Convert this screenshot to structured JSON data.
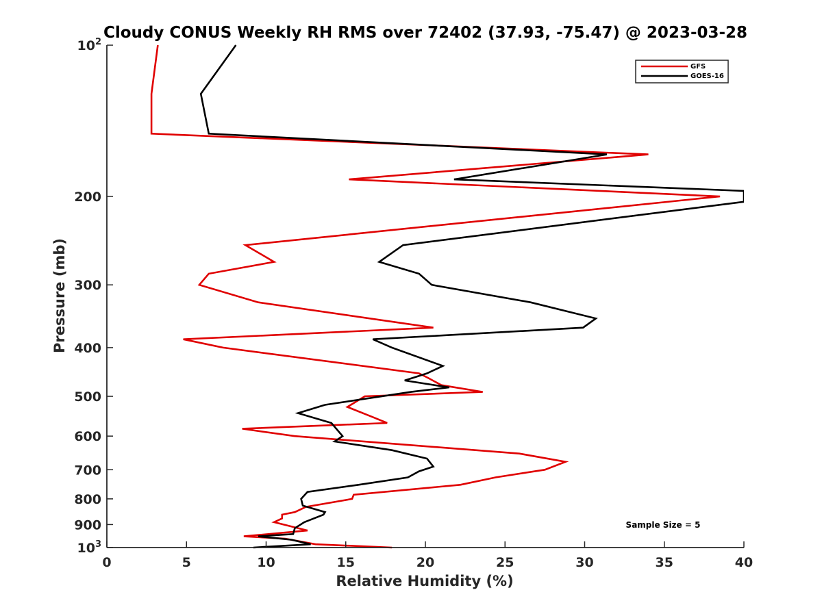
{
  "chart_data": {
    "type": "line",
    "title": "Cloudy CONUS Weekly RH RMS over 72402 (37.93, -75.47) @ 2023-03-28",
    "xlabel": "Relative Humidity (%)",
    "ylabel": "Pressure (mb)",
    "xlim": [
      0,
      40
    ],
    "ylim": [
      100,
      1000
    ],
    "y_scale": "log",
    "y_reversed": true,
    "grid": false,
    "legend_position": "top-right",
    "annotation": "Sample Size = 5",
    "x_ticks": [
      "0",
      "5",
      "10",
      "15",
      "20",
      "25",
      "30",
      "35",
      "40"
    ],
    "x_tick_values": [
      0,
      5,
      10,
      15,
      20,
      25,
      30,
      35,
      40
    ],
    "y_ticks": [
      {
        "value": 100,
        "base": "10",
        "exp": "2"
      },
      {
        "value": 200,
        "base": "200",
        "exp": ""
      },
      {
        "value": 300,
        "base": "300",
        "exp": ""
      },
      {
        "value": 400,
        "base": "400",
        "exp": ""
      },
      {
        "value": 500,
        "base": "500",
        "exp": ""
      },
      {
        "value": 600,
        "base": "600",
        "exp": ""
      },
      {
        "value": 700,
        "base": "700",
        "exp": ""
      },
      {
        "value": 800,
        "base": "800",
        "exp": ""
      },
      {
        "value": 900,
        "base": "900",
        "exp": ""
      },
      {
        "value": 1000,
        "base": "10",
        "exp": "3"
      }
    ],
    "series": [
      {
        "name": "GFS",
        "color": "#e00000",
        "points": [
          {
            "x": 3.2,
            "p": 100
          },
          {
            "x": 2.8,
            "p": 125
          },
          {
            "x": 2.8,
            "p": 150
          },
          {
            "x": 34.0,
            "p": 165
          },
          {
            "x": 15.2,
            "p": 185
          },
          {
            "x": 38.5,
            "p": 200
          },
          {
            "x": 8.7,
            "p": 250
          },
          {
            "x": 10.5,
            "p": 270
          },
          {
            "x": 6.4,
            "p": 285
          },
          {
            "x": 5.8,
            "p": 300
          },
          {
            "x": 9.5,
            "p": 325
          },
          {
            "x": 20.5,
            "p": 365
          },
          {
            "x": 4.8,
            "p": 385
          },
          {
            "x": 7.3,
            "p": 400
          },
          {
            "x": 19.6,
            "p": 450
          },
          {
            "x": 20.2,
            "p": 460
          },
          {
            "x": 21.0,
            "p": 475
          },
          {
            "x": 23.6,
            "p": 490
          },
          {
            "x": 16.2,
            "p": 500
          },
          {
            "x": 15.1,
            "p": 525
          },
          {
            "x": 16.7,
            "p": 550
          },
          {
            "x": 17.6,
            "p": 565
          },
          {
            "x": 8.5,
            "p": 580
          },
          {
            "x": 11.8,
            "p": 600
          },
          {
            "x": 25.9,
            "p": 650
          },
          {
            "x": 28.8,
            "p": 675
          },
          {
            "x": 27.5,
            "p": 700
          },
          {
            "x": 24.4,
            "p": 725
          },
          {
            "x": 22.2,
            "p": 750
          },
          {
            "x": 15.5,
            "p": 785
          },
          {
            "x": 15.4,
            "p": 800
          },
          {
            "x": 12.5,
            "p": 830
          },
          {
            "x": 11.8,
            "p": 850
          },
          {
            "x": 11.0,
            "p": 860
          },
          {
            "x": 11.0,
            "p": 875
          },
          {
            "x": 10.5,
            "p": 890
          },
          {
            "x": 12.6,
            "p": 925
          },
          {
            "x": 8.6,
            "p": 950
          },
          {
            "x": 11.2,
            "p": 960
          },
          {
            "x": 13.1,
            "p": 985
          },
          {
            "x": 17.9,
            "p": 1000
          }
        ]
      },
      {
        "name": "GOES-16",
        "color": "#000000",
        "points": [
          {
            "x": 8.1,
            "p": 100
          },
          {
            "x": 5.9,
            "p": 125
          },
          {
            "x": 6.4,
            "p": 150
          },
          {
            "x": 31.4,
            "p": 165
          },
          {
            "x": 21.8,
            "p": 185
          },
          {
            "x": 40.0,
            "p": 195
          },
          {
            "x": 40.0,
            "p": 205
          },
          {
            "x": 18.6,
            "p": 250
          },
          {
            "x": 17.1,
            "p": 270
          },
          {
            "x": 19.6,
            "p": 285
          },
          {
            "x": 20.4,
            "p": 300
          },
          {
            "x": 26.6,
            "p": 325
          },
          {
            "x": 30.7,
            "p": 350
          },
          {
            "x": 29.9,
            "p": 365
          },
          {
            "x": 16.7,
            "p": 385
          },
          {
            "x": 17.9,
            "p": 400
          },
          {
            "x": 21.1,
            "p": 435
          },
          {
            "x": 20.1,
            "p": 450
          },
          {
            "x": 18.7,
            "p": 465
          },
          {
            "x": 21.5,
            "p": 480
          },
          {
            "x": 19.1,
            "p": 490
          },
          {
            "x": 13.7,
            "p": 520
          },
          {
            "x": 12.0,
            "p": 540
          },
          {
            "x": 14.1,
            "p": 565
          },
          {
            "x": 14.8,
            "p": 600
          },
          {
            "x": 14.3,
            "p": 615
          },
          {
            "x": 17.9,
            "p": 640
          },
          {
            "x": 20.1,
            "p": 665
          },
          {
            "x": 20.5,
            "p": 690
          },
          {
            "x": 19.6,
            "p": 705
          },
          {
            "x": 18.9,
            "p": 725
          },
          {
            "x": 15.8,
            "p": 750
          },
          {
            "x": 12.6,
            "p": 775
          },
          {
            "x": 12.2,
            "p": 800
          },
          {
            "x": 12.3,
            "p": 825
          },
          {
            "x": 13.7,
            "p": 850
          },
          {
            "x": 13.6,
            "p": 860
          },
          {
            "x": 12.4,
            "p": 890
          },
          {
            "x": 11.8,
            "p": 915
          },
          {
            "x": 11.7,
            "p": 940
          },
          {
            "x": 9.5,
            "p": 950
          },
          {
            "x": 11.6,
            "p": 965
          },
          {
            "x": 12.8,
            "p": 985
          },
          {
            "x": 9.2,
            "p": 1000
          }
        ]
      }
    ]
  }
}
